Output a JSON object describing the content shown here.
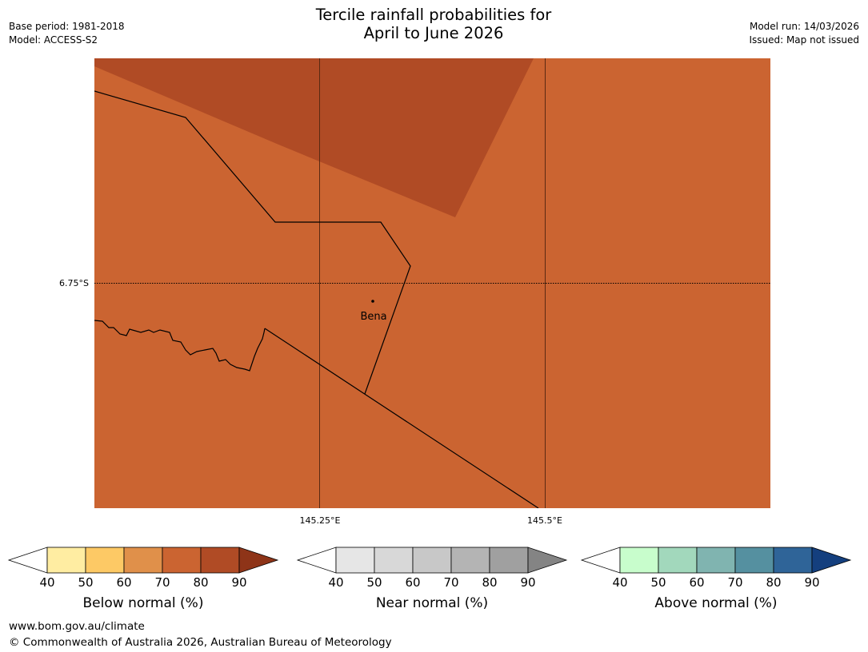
{
  "header": {
    "title_line1": "Tercile rainfall probabilities for",
    "title_line2": "April to June 2026",
    "base_period": "Base period: 1981-2018",
    "model": "Model: ACCESS-S2",
    "model_run": "Model run: 14/03/2026",
    "issued": "Issued: Map not issued"
  },
  "map": {
    "lat_labels": [
      "6.75°S"
    ],
    "lon_labels": [
      "145.25°E",
      "145.5°E"
    ],
    "places": [
      {
        "name": "Bena"
      }
    ],
    "fill_colors": {
      "base": "#cb6431",
      "dark_region": "#b04b25"
    }
  },
  "legends": [
    {
      "title": "Below normal (%)",
      "ticks": [
        "40",
        "50",
        "60",
        "70",
        "80",
        "90"
      ],
      "colors": [
        "#ffeda2",
        "#fdc965",
        "#e0904a",
        "#cb6431",
        "#b04b25",
        "#8e3418"
      ]
    },
    {
      "title": "Near normal (%)",
      "ticks": [
        "40",
        "50",
        "60",
        "70",
        "80",
        "90"
      ],
      "colors": [
        "#e6e6e6",
        "#d8d8d8",
        "#c8c8c8",
        "#b4b4b4",
        "#a0a0a0",
        "#848484"
      ]
    },
    {
      "title": "Above normal (%)",
      "ticks": [
        "40",
        "50",
        "60",
        "70",
        "80",
        "90"
      ],
      "colors": [
        "#c8fdcc",
        "#a2d8bc",
        "#80b4b0",
        "#5590a0",
        "#2f6498",
        "#143f7e"
      ]
    }
  ],
  "footer": {
    "url": "www.bom.gov.au/climate",
    "copyright": "© Commonwealth of Australia 2026, Australian Bureau of Meteorology"
  }
}
